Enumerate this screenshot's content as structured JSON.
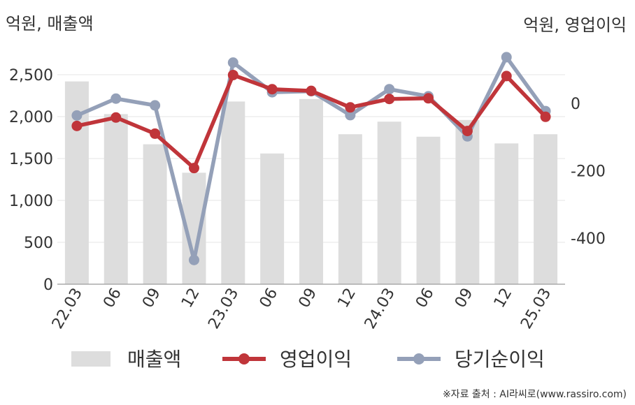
{
  "units": {
    "left": "억원, 매출액",
    "right": "억원, 영업이익"
  },
  "source": "※자료 출처 : AI라씨로(www.rassiro.com)",
  "chart_data": {
    "type": "bar+line",
    "categories": [
      "22.03",
      "06",
      "09",
      "12",
      "23.03",
      "06",
      "09",
      "12",
      "24.03",
      "06",
      "09",
      "12",
      "25.03"
    ],
    "series": [
      {
        "name": "매출액",
        "type": "bar",
        "axis": "left",
        "color": "#dddddd",
        "values": [
          2420,
          2030,
          1670,
          1330,
          2180,
          1560,
          2210,
          1790,
          1940,
          1760,
          1960,
          1680,
          1790
        ]
      },
      {
        "name": "영업이익",
        "type": "line",
        "axis": "right",
        "color": "#c0353a",
        "values": [
          -67,
          -42,
          -90,
          -192,
          84,
          42,
          37,
          -12,
          13,
          15,
          -82,
          81,
          -40
        ]
      },
      {
        "name": "당기순이익",
        "type": "line",
        "axis": "right",
        "color": "#94a0b8",
        "values": [
          -36,
          14,
          -6,
          -465,
          121,
          33,
          36,
          -35,
          42,
          21,
          -98,
          137,
          -23
        ]
      }
    ],
    "yleft": {
      "ticks": [
        0,
        500,
        1000,
        1500,
        2000,
        2500
      ],
      "tick_labels": [
        "0",
        "500",
        "1,000",
        "1,500",
        "2,000",
        "2,500"
      ]
    },
    "yright": {
      "ticks": [
        0,
        -200,
        -400
      ],
      "tick_labels": [
        "0",
        "-200",
        "-400"
      ]
    },
    "grid": true,
    "legend_position": "bottom"
  }
}
